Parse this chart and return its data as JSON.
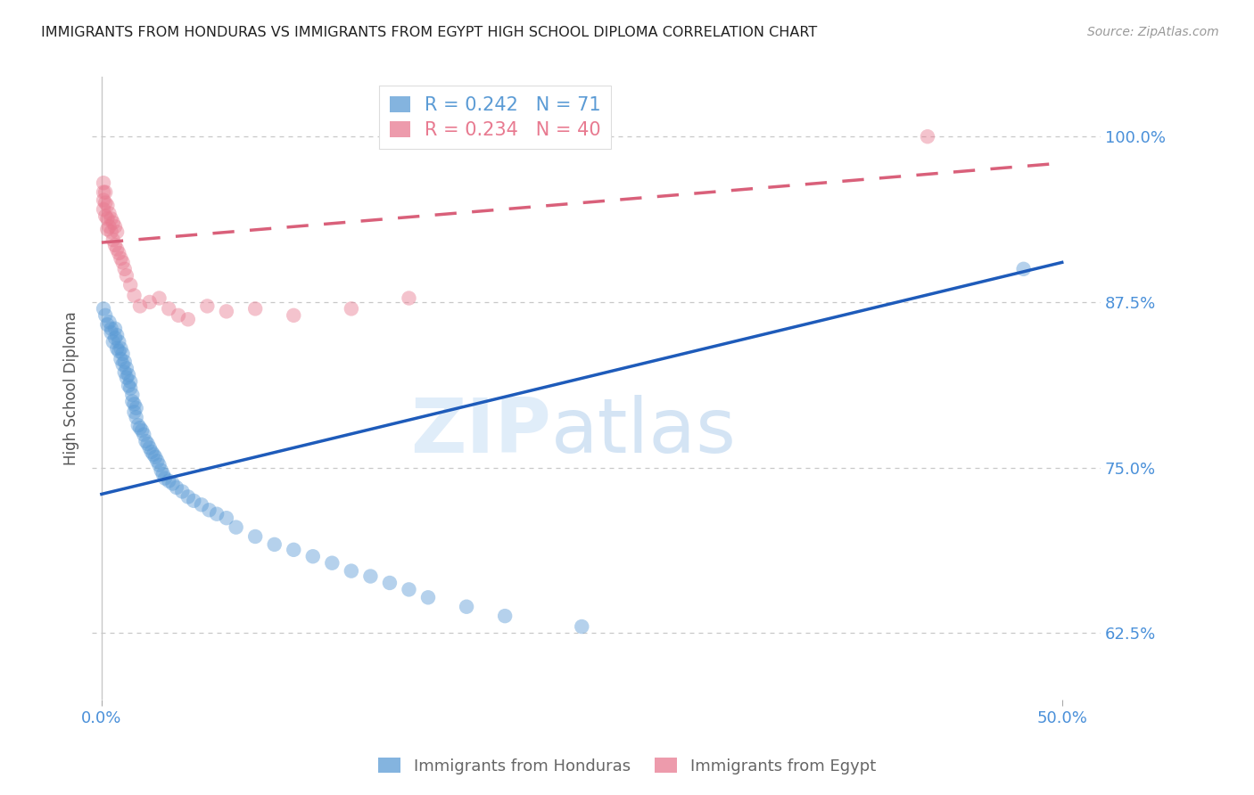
{
  "title": "IMMIGRANTS FROM HONDURAS VS IMMIGRANTS FROM EGYPT HIGH SCHOOL DIPLOMA CORRELATION CHART",
  "source": "Source: ZipAtlas.com",
  "ylabel": "High School Diploma",
  "ytick_vals": [
    0.625,
    0.75,
    0.875,
    1.0
  ],
  "ytick_labels": [
    "62.5%",
    "75.0%",
    "87.5%",
    "100.0%"
  ],
  "xtick_vals": [
    0.0,
    0.5
  ],
  "xtick_labels": [
    "0.0%",
    "50.0%"
  ],
  "xlim": [
    -0.005,
    0.52
  ],
  "ylim": [
    0.575,
    1.045
  ],
  "legend_blue_color": "#5b9bd5",
  "legend_pink_color": "#e87a90",
  "background_color": "#ffffff",
  "grid_color": "#c8c8c8",
  "title_color": "#222222",
  "axis_label_color": "#4a90d9",
  "watermark_zip": "ZIP",
  "watermark_atlas": "atlas",
  "blue_scatter_x": [
    0.001,
    0.002,
    0.003,
    0.004,
    0.005,
    0.005,
    0.006,
    0.007,
    0.007,
    0.008,
    0.008,
    0.009,
    0.009,
    0.01,
    0.01,
    0.011,
    0.011,
    0.012,
    0.012,
    0.013,
    0.013,
    0.014,
    0.014,
    0.015,
    0.015,
    0.016,
    0.016,
    0.017,
    0.017,
    0.018,
    0.018,
    0.019,
    0.02,
    0.021,
    0.022,
    0.023,
    0.024,
    0.025,
    0.026,
    0.027,
    0.028,
    0.029,
    0.03,
    0.031,
    0.032,
    0.033,
    0.035,
    0.037,
    0.039,
    0.042,
    0.045,
    0.048,
    0.052,
    0.056,
    0.06,
    0.065,
    0.07,
    0.08,
    0.09,
    0.1,
    0.11,
    0.12,
    0.13,
    0.14,
    0.15,
    0.16,
    0.17,
    0.19,
    0.21,
    0.25,
    0.48
  ],
  "blue_scatter_y": [
    0.87,
    0.865,
    0.858,
    0.86,
    0.855,
    0.852,
    0.845,
    0.855,
    0.848,
    0.85,
    0.84,
    0.845,
    0.838,
    0.84,
    0.832,
    0.836,
    0.828,
    0.83,
    0.822,
    0.825,
    0.818,
    0.82,
    0.812,
    0.815,
    0.81,
    0.805,
    0.8,
    0.798,
    0.792,
    0.795,
    0.788,
    0.782,
    0.78,
    0.778,
    0.775,
    0.77,
    0.768,
    0.765,
    0.762,
    0.76,
    0.758,
    0.755,
    0.752,
    0.748,
    0.745,
    0.742,
    0.74,
    0.738,
    0.735,
    0.732,
    0.728,
    0.725,
    0.722,
    0.718,
    0.715,
    0.712,
    0.705,
    0.698,
    0.692,
    0.688,
    0.683,
    0.678,
    0.672,
    0.668,
    0.663,
    0.658,
    0.652,
    0.645,
    0.638,
    0.63,
    0.9
  ],
  "pink_scatter_x": [
    0.001,
    0.001,
    0.001,
    0.001,
    0.002,
    0.002,
    0.002,
    0.003,
    0.003,
    0.003,
    0.004,
    0.004,
    0.005,
    0.005,
    0.006,
    0.006,
    0.007,
    0.007,
    0.008,
    0.008,
    0.009,
    0.01,
    0.011,
    0.012,
    0.013,
    0.015,
    0.017,
    0.02,
    0.025,
    0.03,
    0.035,
    0.04,
    0.045,
    0.055,
    0.065,
    0.08,
    0.1,
    0.13,
    0.16,
    0.43
  ],
  "pink_scatter_y": [
    0.965,
    0.958,
    0.952,
    0.945,
    0.958,
    0.95,
    0.94,
    0.948,
    0.938,
    0.93,
    0.942,
    0.932,
    0.938,
    0.928,
    0.935,
    0.922,
    0.932,
    0.918,
    0.928,
    0.915,
    0.912,
    0.908,
    0.905,
    0.9,
    0.895,
    0.888,
    0.88,
    0.872,
    0.875,
    0.878,
    0.87,
    0.865,
    0.862,
    0.872,
    0.868,
    0.87,
    0.865,
    0.87,
    0.878,
    1.0
  ],
  "blue_line_x": [
    0.0,
    0.5
  ],
  "blue_line_y": [
    0.73,
    0.905
  ],
  "pink_line_x": [
    0.0,
    0.5
  ],
  "pink_line_y": [
    0.92,
    0.98
  ],
  "scatter_size": 140,
  "scatter_alpha": 0.45,
  "line_width": 2.5,
  "blue_line_color": "#1e5bba",
  "pink_line_color": "#d9607a"
}
